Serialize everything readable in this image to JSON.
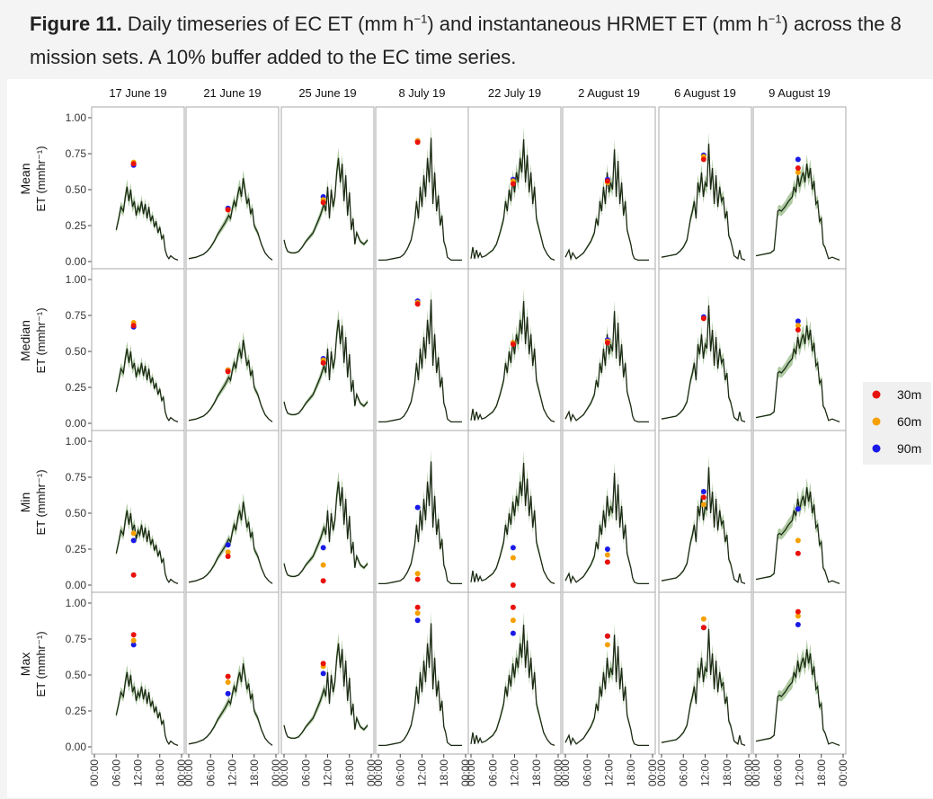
{
  "caption": {
    "label": "Figure 11.",
    "text_pre": " Daily timeseries of EC ET (mm h",
    "sup1": "−1",
    "text_mid": ") and instantaneous HRMET ET (mm h",
    "sup2": "−1",
    "text_post": ") across the 8 mission sets. A 10% buffer added to the EC time series."
  },
  "colors": {
    "line": "#1a2a12",
    "band": "#8fb57e",
    "30m": "#e8120c",
    "60m": "#f5a000",
    "90m": "#1a1ae6",
    "panel_border": "#aaaaaa"
  },
  "chart_data": {
    "type": "line",
    "facet_columns": [
      "17 June 19",
      "21 June 19",
      "25 June 19",
      "8 July 19",
      "22 July 19",
      "2 August 19",
      "6 August 19",
      "9 August 19"
    ],
    "facet_rows": [
      "Mean",
      "Median",
      "Min",
      "Max"
    ],
    "ylabel": "ET (mmhr⁻¹)",
    "ylim": [
      0,
      1.0
    ],
    "yticks": [
      "0.00",
      "0.25",
      "0.50",
      "0.75",
      "1.00"
    ],
    "xticks": [
      "00:00",
      "06:00",
      "12:00",
      "18:00",
      "00:00"
    ],
    "legend": {
      "position": "right",
      "entries": [
        "30m",
        "60m",
        "90m"
      ]
    },
    "series_ec": [
      {
        "x": [
          6,
          6.7,
          7.3,
          8,
          8.5,
          9,
          9.5,
          10,
          10.5,
          11,
          11.5,
          12,
          12.5,
          13,
          13.5,
          14,
          14.5,
          15,
          15.5,
          16,
          16.5,
          17,
          17.5,
          18,
          18.5,
          19,
          19.5,
          20,
          20.5,
          21,
          22,
          23
        ],
        "y": [
          0.22,
          0.3,
          0.38,
          0.35,
          0.45,
          0.52,
          0.42,
          0.5,
          0.38,
          0.42,
          0.32,
          0.38,
          0.35,
          0.42,
          0.33,
          0.4,
          0.3,
          0.38,
          0.28,
          0.32,
          0.24,
          0.28,
          0.2,
          0.24,
          0.16,
          0.18,
          0.08,
          0.04,
          0.02,
          0.04,
          0.02,
          0.01
        ]
      },
      {
        "x": [
          0,
          2,
          4,
          5,
          6,
          7,
          8,
          9,
          10,
          11,
          11.5,
          12,
          12.5,
          13,
          13.5,
          14,
          14.5,
          15,
          15.5,
          16,
          16.5,
          17,
          17.5,
          18,
          19,
          20,
          21,
          22,
          23
        ],
        "y": [
          0.02,
          0.03,
          0.05,
          0.07,
          0.1,
          0.14,
          0.19,
          0.23,
          0.27,
          0.32,
          0.3,
          0.37,
          0.42,
          0.38,
          0.47,
          0.52,
          0.45,
          0.58,
          0.5,
          0.4,
          0.44,
          0.33,
          0.37,
          0.25,
          0.2,
          0.12,
          0.06,
          0.03,
          0.01
        ]
      },
      {
        "x": [
          0,
          0.5,
          1,
          2,
          3,
          4,
          5,
          6,
          7,
          8,
          9,
          10,
          11,
          11.5,
          12,
          12.5,
          13,
          13.5,
          14,
          14.5,
          15,
          15.5,
          16,
          16.5,
          17,
          17.5,
          18,
          18.5,
          19,
          19.5,
          20,
          21,
          22,
          23
        ],
        "y": [
          0.15,
          0.1,
          0.07,
          0.06,
          0.06,
          0.07,
          0.1,
          0.14,
          0.17,
          0.2,
          0.26,
          0.32,
          0.4,
          0.35,
          0.52,
          0.3,
          0.5,
          0.38,
          0.45,
          0.62,
          0.72,
          0.55,
          0.68,
          0.42,
          0.6,
          0.32,
          0.48,
          0.22,
          0.3,
          0.12,
          0.2,
          0.14,
          0.12,
          0.15
        ]
      },
      {
        "x": [
          0,
          2,
          4,
          6,
          7,
          8,
          9,
          10,
          10.5,
          11,
          11.5,
          12,
          12.5,
          13,
          13.5,
          14,
          14.5,
          15,
          15.5,
          16,
          16.5,
          17,
          17.5,
          18,
          18.5,
          19,
          20,
          21,
          22,
          23
        ],
        "y": [
          0.01,
          0.01,
          0.02,
          0.03,
          0.05,
          0.09,
          0.15,
          0.28,
          0.42,
          0.3,
          0.52,
          0.38,
          0.6,
          0.45,
          0.72,
          0.55,
          0.86,
          0.4,
          0.62,
          0.35,
          0.46,
          0.25,
          0.32,
          0.14,
          0.1,
          0.03,
          0.01,
          0.01,
          0.01,
          0.01
        ]
      },
      {
        "x": [
          0,
          0.5,
          1,
          1.5,
          2,
          2.5,
          3,
          4,
          5,
          6,
          7,
          8,
          9,
          9.5,
          10,
          10.5,
          11,
          11.5,
          12,
          12.5,
          13,
          13.5,
          14,
          14.5,
          15,
          15.5,
          16,
          16.5,
          17,
          17.5,
          18,
          19,
          20,
          21,
          22,
          23
        ],
        "y": [
          0.02,
          0.1,
          0.02,
          0.08,
          0.03,
          0.06,
          0.03,
          0.04,
          0.06,
          0.08,
          0.12,
          0.2,
          0.3,
          0.42,
          0.35,
          0.5,
          0.42,
          0.58,
          0.48,
          0.62,
          0.55,
          0.72,
          0.62,
          0.85,
          0.55,
          0.74,
          0.48,
          0.62,
          0.4,
          0.52,
          0.3,
          0.2,
          0.1,
          0.05,
          0.02,
          0.01
        ]
      },
      {
        "x": [
          0,
          1,
          1.5,
          2,
          3,
          4,
          5,
          6,
          7,
          8,
          8.5,
          9,
          9.5,
          10,
          10.5,
          11,
          11.5,
          12,
          12.5,
          13,
          13.5,
          14,
          14.5,
          15,
          15.5,
          16,
          16.5,
          17,
          18,
          18.5,
          19,
          20,
          21,
          22,
          23
        ],
        "y": [
          0.03,
          0.08,
          0.02,
          0.06,
          0.02,
          0.04,
          0.06,
          0.1,
          0.14,
          0.2,
          0.3,
          0.25,
          0.42,
          0.35,
          0.52,
          0.4,
          0.62,
          0.48,
          0.55,
          0.5,
          0.78,
          0.45,
          0.7,
          0.4,
          0.55,
          0.32,
          0.42,
          0.22,
          0.12,
          0.05,
          0.02,
          0.01,
          0.01,
          0.01,
          0.01
        ]
      },
      {
        "x": [
          0,
          2,
          4,
          5,
          6,
          7,
          8,
          8.5,
          9,
          9.5,
          10,
          10.5,
          11,
          11.5,
          12,
          12.5,
          13,
          13.5,
          14,
          14.5,
          15,
          15.5,
          16,
          16.5,
          17,
          17.5,
          18,
          18.5,
          19,
          20,
          21,
          21.5,
          22,
          23
        ],
        "y": [
          0.03,
          0.04,
          0.05,
          0.07,
          0.1,
          0.15,
          0.3,
          0.35,
          0.42,
          0.3,
          0.55,
          0.48,
          0.62,
          0.45,
          0.55,
          0.52,
          0.82,
          0.5,
          0.65,
          0.4,
          0.6,
          0.38,
          0.52,
          0.42,
          0.45,
          0.3,
          0.35,
          0.18,
          0.15,
          0.04,
          0.02,
          0.08,
          0.02,
          0.01
        ]
      },
      {
        "x": [
          0,
          2,
          4,
          5,
          6,
          6.5,
          7,
          8,
          9,
          10,
          10.5,
          11,
          11.5,
          12,
          12.5,
          13,
          13.5,
          14,
          14.5,
          15,
          15.5,
          16,
          16.5,
          17,
          17.5,
          18,
          18.5,
          19,
          20,
          21,
          22,
          23
        ],
        "y": [
          0.04,
          0.05,
          0.06,
          0.08,
          0.35,
          0.36,
          0.35,
          0.38,
          0.42,
          0.45,
          0.52,
          0.48,
          0.6,
          0.52,
          0.58,
          0.62,
          0.55,
          0.68,
          0.58,
          0.65,
          0.5,
          0.56,
          0.4,
          0.42,
          0.28,
          0.3,
          0.12,
          0.1,
          0.02,
          0.03,
          0.02,
          0.01
        ]
      }
    ],
    "hrmet_time_hours": [
      10.8,
      10.8,
      10.8,
      10.8,
      11.6,
      11.6,
      11.6,
      11.6
    ],
    "hrmet_points": {
      "Mean": [
        {
          "30m": 0.68,
          "60m": 0.69,
          "90m": 0.67
        },
        {
          "30m": 0.36,
          "60m": 0.36,
          "90m": 0.37
        },
        {
          "30m": 0.41,
          "60m": 0.43,
          "90m": 0.45
        },
        {
          "30m": 0.83,
          "60m": 0.84,
          "90m": 0.84
        },
        {
          "30m": 0.54,
          "60m": 0.56,
          "90m": 0.57
        },
        {
          "30m": 0.56,
          "60m": 0.55,
          "90m": 0.57
        },
        {
          "30m": 0.71,
          "60m": 0.73,
          "90m": 0.74
        },
        {
          "30m": 0.65,
          "60m": 0.62,
          "90m": 0.71
        }
      ],
      "Median": [
        {
          "30m": 0.68,
          "60m": 0.7,
          "90m": 0.67
        },
        {
          "30m": 0.36,
          "60m": 0.37,
          "90m": 0.37
        },
        {
          "30m": 0.42,
          "60m": 0.44,
          "90m": 0.45
        },
        {
          "30m": 0.83,
          "60m": 0.84,
          "90m": 0.85
        },
        {
          "30m": 0.55,
          "60m": 0.56,
          "90m": 0.56
        },
        {
          "30m": 0.56,
          "60m": 0.57,
          "90m": 0.58
        },
        {
          "30m": 0.73,
          "60m": 0.73,
          "90m": 0.74
        },
        {
          "30m": 0.65,
          "60m": 0.68,
          "90m": 0.71
        }
      ],
      "Min": [
        {
          "30m": 0.07,
          "60m": 0.36,
          "90m": 0.31
        },
        {
          "30m": 0.2,
          "60m": 0.23,
          "90m": 0.28
        },
        {
          "30m": 0.03,
          "60m": 0.14,
          "90m": 0.26
        },
        {
          "30m": 0.04,
          "60m": 0.08,
          "90m": 0.54
        },
        {
          "30m": 0.0,
          "60m": 0.19,
          "90m": 0.26
        },
        {
          "30m": 0.16,
          "60m": 0.21,
          "90m": 0.25
        },
        {
          "30m": 0.61,
          "60m": 0.56,
          "90m": 0.65
        },
        {
          "30m": 0.22,
          "60m": 0.31,
          "90m": 0.53
        }
      ],
      "Max": [
        {
          "30m": 0.78,
          "60m": 0.74,
          "90m": 0.71
        },
        {
          "30m": 0.49,
          "60m": 0.45,
          "90m": 0.37
        },
        {
          "30m": 0.58,
          "60m": 0.56,
          "90m": 0.51
        },
        {
          "30m": 0.97,
          "60m": 0.93,
          "90m": 0.88
        },
        {
          "30m": 0.97,
          "60m": 0.88,
          "90m": 0.79
        },
        {
          "30m": 0.77,
          "60m": 0.71,
          "90m": 0.77
        },
        {
          "30m": 0.83,
          "60m": 0.89,
          "90m": 0.83
        },
        {
          "30m": 0.94,
          "60m": 0.91,
          "90m": 0.85
        }
      ]
    }
  }
}
